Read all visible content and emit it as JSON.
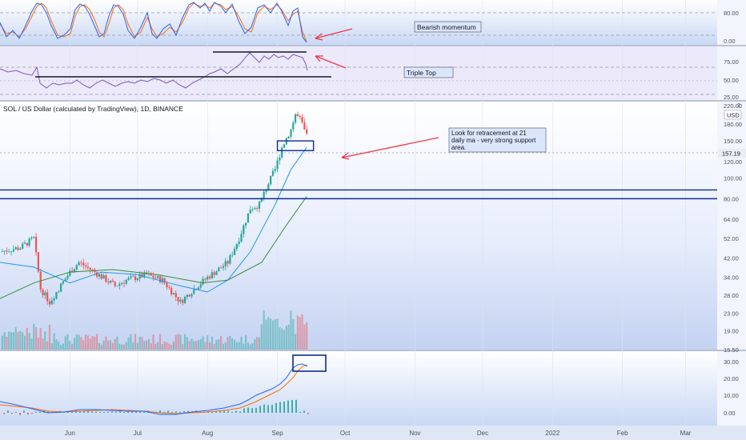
{
  "header": {
    "symbol_title": "SOL / US Dollar (calculated by TradingView), 1D, BINANCE",
    "scale_label": "USD",
    "log_badge": "2"
  },
  "price_axis": {
    "ticks": [
      "220.00",
      "180.00",
      "150.00",
      "120.00",
      "100.00",
      "80.00",
      "64.00",
      "52.00",
      "42.00",
      "34.00",
      "28.00",
      "23.00",
      "19.00",
      "15.50"
    ],
    "current_price": "157.19"
  },
  "stoch_axis": {
    "ticks": [
      "80.00",
      "0.00"
    ]
  },
  "rsi_axis": {
    "ticks": [
      "75.00",
      "50.00",
      "25.00"
    ]
  },
  "macd_axis": {
    "ticks": [
      "30.00",
      "20.00",
      "10.00",
      "0.00"
    ]
  },
  "time_axis": {
    "labels": [
      "Jun",
      "Jul",
      "Aug",
      "Sep",
      "Oct",
      "Nov",
      "Dec",
      "2022",
      "Feb",
      "Mar"
    ]
  },
  "annotations": {
    "bearish": "Bearish momentum",
    "triple_top": "Triple Top",
    "retracement": [
      "Look for retracement at 21",
      "daily ma - very strong support",
      "area."
    ]
  },
  "colors": {
    "up": "#26a69a",
    "down": "#ef5350",
    "ma21": "#2196f3",
    "ma50": "#388e3c",
    "stoch_k": "#2962ff",
    "stoch_d": "#ff6d00",
    "rsi": "#7e57c2",
    "arrow": "#f23645",
    "box": "#0d2c8c"
  },
  "chart_data": {
    "type": "candlestick",
    "title": "SOL / US Dollar (calculated by TradingView), 1D, BINANCE",
    "scale": "log",
    "unit": "USD",
    "x_range": [
      "2021-05-01",
      "2022-03-15"
    ],
    "y_range": [
      15.5,
      230
    ],
    "horizontal_levels": [
      88,
      80
    ],
    "current_price": 157.19,
    "close_path": [
      {
        "date": "2021-05-01",
        "close": 45
      },
      {
        "date": "2021-05-10",
        "close": 47
      },
      {
        "date": "2021-05-16",
        "close": 52
      },
      {
        "date": "2021-05-19",
        "close": 30
      },
      {
        "date": "2021-05-23",
        "close": 26
      },
      {
        "date": "2021-06-01",
        "close": 36
      },
      {
        "date": "2021-06-05",
        "close": 40
      },
      {
        "date": "2021-06-12",
        "close": 36
      },
      {
        "date": "2021-06-21",
        "close": 31
      },
      {
        "date": "2021-06-26",
        "close": 33
      },
      {
        "date": "2021-07-05",
        "close": 35
      },
      {
        "date": "2021-07-12",
        "close": 33
      },
      {
        "date": "2021-07-20",
        "close": 26
      },
      {
        "date": "2021-07-26",
        "close": 30
      },
      {
        "date": "2021-08-01",
        "close": 34
      },
      {
        "date": "2021-08-10",
        "close": 40
      },
      {
        "date": "2021-08-15",
        "close": 52
      },
      {
        "date": "2021-08-20",
        "close": 72
      },
      {
        "date": "2021-08-24",
        "close": 75
      },
      {
        "date": "2021-08-27",
        "close": 90
      },
      {
        "date": "2021-08-31",
        "close": 110
      },
      {
        "date": "2021-09-03",
        "close": 140
      },
      {
        "date": "2021-09-07",
        "close": 170
      },
      {
        "date": "2021-09-09",
        "close": 200
      },
      {
        "date": "2021-09-11",
        "close": 190
      },
      {
        "date": "2021-09-14",
        "close": 157.19
      }
    ],
    "ma21": [
      {
        "date": "2021-05-01",
        "value": 40
      },
      {
        "date": "2021-05-16",
        "value": 38
      },
      {
        "date": "2021-06-01",
        "value": 32
      },
      {
        "date": "2021-06-15",
        "value": 36
      },
      {
        "date": "2021-07-01",
        "value": 35
      },
      {
        "date": "2021-07-20",
        "value": 31
      },
      {
        "date": "2021-08-01",
        "value": 29
      },
      {
        "date": "2021-08-10",
        "value": 33
      },
      {
        "date": "2021-08-20",
        "value": 45
      },
      {
        "date": "2021-08-31",
        "value": 75
      },
      {
        "date": "2021-09-07",
        "value": 110
      },
      {
        "date": "2021-09-14",
        "value": 140
      }
    ],
    "ma50": [
      {
        "date": "2021-05-01",
        "value": 27
      },
      {
        "date": "2021-05-16",
        "value": 32
      },
      {
        "date": "2021-06-01",
        "value": 36
      },
      {
        "date": "2021-06-20",
        "value": 37
      },
      {
        "date": "2021-07-10",
        "value": 35
      },
      {
        "date": "2021-07-30",
        "value": 32
      },
      {
        "date": "2021-08-10",
        "value": 33
      },
      {
        "date": "2021-08-25",
        "value": 40
      },
      {
        "date": "2021-09-05",
        "value": 60
      },
      {
        "date": "2021-09-14",
        "value": 82
      }
    ],
    "support_box": {
      "from": "2021-09-01",
      "to": "2021-09-17",
      "low": 135,
      "high": 150
    },
    "indicators": {
      "stochastic": {
        "levels": [
          80,
          20
        ]
      },
      "rsi": {
        "levels": [
          70,
          50,
          30
        ]
      },
      "macd": {
        "range": [
          -5,
          33
        ]
      }
    }
  }
}
